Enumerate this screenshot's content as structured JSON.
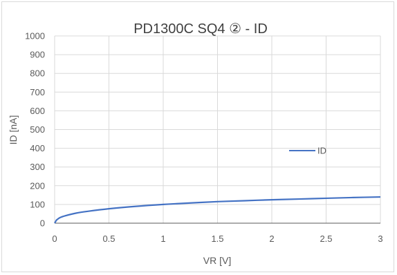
{
  "chart_data": {
    "type": "line",
    "title": "PD1300C SQ4 ② - ID",
    "xlabel": "VR [V]",
    "ylabel": "ID [nA]",
    "xlim": [
      0,
      3
    ],
    "ylim": [
      0,
      1000
    ],
    "x_ticks": [
      "0",
      "0.5",
      "1",
      "1.5",
      "2",
      "2.5",
      "3"
    ],
    "y_ticks": [
      "0",
      "100",
      "200",
      "300",
      "400",
      "500",
      "600",
      "700",
      "800",
      "900",
      "1000"
    ],
    "grid": true,
    "legend_position": "right",
    "series": [
      {
        "name": "ID",
        "color": "#4472c4",
        "x": [
          0,
          0.01,
          0.02,
          0.05,
          0.1,
          0.2,
          0.3,
          0.5,
          0.75,
          1.0,
          1.25,
          1.5,
          1.75,
          2.0,
          2.25,
          2.5,
          2.75,
          3.0
        ],
        "y": [
          0,
          10,
          18,
          30,
          40,
          54,
          63,
          77,
          90,
          100,
          108,
          115,
          120,
          125,
          129,
          133,
          137,
          140
        ]
      }
    ]
  }
}
